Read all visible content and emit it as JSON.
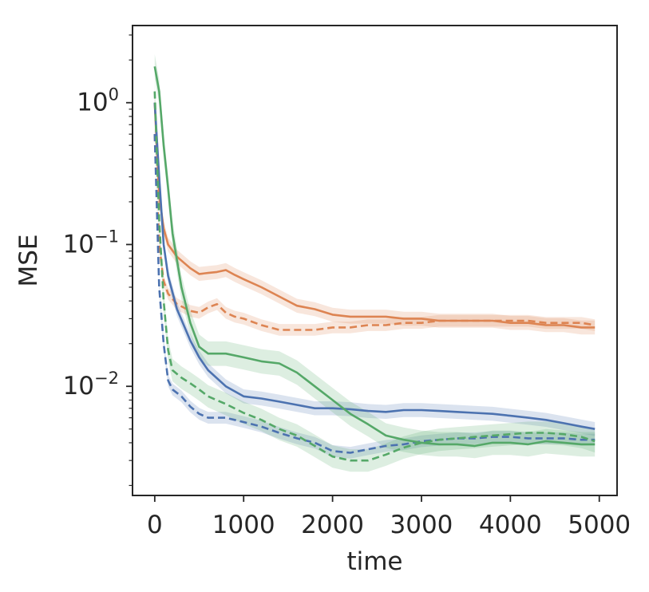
{
  "chart_data": {
    "type": "line",
    "title": "",
    "xlabel": "time",
    "ylabel": "MSE",
    "xlim": [
      -250,
      5200
    ],
    "ylim": [
      0.0017,
      3.5
    ],
    "y_scale": "log",
    "grid": false,
    "legend": "none",
    "x_ticks": [
      0,
      1000,
      2000,
      3000,
      4000,
      5000
    ],
    "x_tick_labels": [
      "0",
      "1000",
      "2000",
      "3000",
      "4000",
      "5000"
    ],
    "y_ticks": [
      {
        "value": 1,
        "base": "10",
        "exp": "0"
      },
      {
        "value": 0.1,
        "base": "10",
        "exp": "−1"
      },
      {
        "value": 0.01,
        "base": "10",
        "exp": "−2"
      }
    ],
    "series": [
      {
        "color": "#dd8452",
        "dash": "solid",
        "x": [
          0,
          50,
          100,
          150,
          250,
          400,
          500,
          600,
          700,
          800,
          900,
          1000,
          1200,
          1400,
          1600,
          1800,
          2000,
          2200,
          2400,
          2600,
          2800,
          3000,
          3200,
          3400,
          3600,
          3800,
          4000,
          4200,
          4400,
          4600,
          4800,
          4950
        ],
        "y": [
          1.0,
          0.22,
          0.13,
          0.1,
          0.082,
          0.068,
          0.062,
          0.063,
          0.064,
          0.066,
          0.061,
          0.057,
          0.05,
          0.043,
          0.037,
          0.035,
          0.032,
          0.031,
          0.031,
          0.031,
          0.03,
          0.03,
          0.029,
          0.029,
          0.029,
          0.029,
          0.028,
          0.028,
          0.027,
          0.027,
          0.026,
          0.026
        ],
        "band_ratio": 1.12
      },
      {
        "color": "#dd8452",
        "dash": "dashed",
        "x": [
          0,
          50,
          100,
          150,
          250,
          400,
          500,
          600,
          700,
          800,
          900,
          1000,
          1200,
          1400,
          1600,
          1800,
          2000,
          2200,
          2400,
          2600,
          2800,
          3000,
          3200,
          3400,
          3600,
          3800,
          4000,
          4200,
          4400,
          4600,
          4800,
          4950
        ],
        "y": [
          0.6,
          0.1,
          0.055,
          0.045,
          0.038,
          0.034,
          0.033,
          0.036,
          0.038,
          0.033,
          0.031,
          0.03,
          0.027,
          0.025,
          0.025,
          0.025,
          0.026,
          0.026,
          0.027,
          0.027,
          0.028,
          0.028,
          0.029,
          0.029,
          0.029,
          0.029,
          0.029,
          0.029,
          0.028,
          0.028,
          0.028,
          0.027
        ],
        "band_ratio": 1.1
      },
      {
        "color": "#4c72b0",
        "dash": "solid",
        "x": [
          0,
          50,
          100,
          150,
          250,
          400,
          500,
          600,
          800,
          1000,
          1200,
          1400,
          1600,
          1800,
          2000,
          2200,
          2400,
          2600,
          2800,
          3000,
          3200,
          3400,
          3600,
          3800,
          4000,
          4200,
          4400,
          4600,
          4800,
          4950
        ],
        "y": [
          1.0,
          0.3,
          0.1,
          0.06,
          0.035,
          0.021,
          0.016,
          0.013,
          0.01,
          0.0085,
          0.0082,
          0.0078,
          0.0074,
          0.007,
          0.007,
          0.0069,
          0.0067,
          0.0066,
          0.0068,
          0.0068,
          0.0067,
          0.0066,
          0.0065,
          0.0064,
          0.0062,
          0.006,
          0.0058,
          0.0055,
          0.0052,
          0.005
        ],
        "band_ratio": 1.12
      },
      {
        "color": "#4c72b0",
        "dash": "dashed",
        "x": [
          0,
          50,
          100,
          150,
          200,
          300,
          400,
          500,
          600,
          800,
          1000,
          1200,
          1400,
          1600,
          1800,
          2000,
          2200,
          2400,
          2600,
          2800,
          3000,
          3200,
          3400,
          3600,
          3800,
          4000,
          4200,
          4400,
          4600,
          4800,
          4950
        ],
        "y": [
          0.6,
          0.05,
          0.02,
          0.011,
          0.0095,
          0.0085,
          0.0072,
          0.0064,
          0.006,
          0.006,
          0.0056,
          0.0052,
          0.0047,
          0.0043,
          0.004,
          0.0035,
          0.0034,
          0.0036,
          0.0038,
          0.0039,
          0.0041,
          0.0042,
          0.0043,
          0.0043,
          0.0044,
          0.0044,
          0.0043,
          0.0043,
          0.0043,
          0.0042,
          0.0042
        ],
        "band_ratio": 1.1
      },
      {
        "color": "#55a868",
        "dash": "solid",
        "x": [
          0,
          50,
          100,
          150,
          200,
          300,
          400,
          500,
          600,
          800,
          1000,
          1200,
          1400,
          1600,
          1800,
          2000,
          2200,
          2400,
          2600,
          2800,
          3000,
          3200,
          3400,
          3600,
          3800,
          4000,
          4200,
          4400,
          4600,
          4800,
          4950
        ],
        "y": [
          1.8,
          1.2,
          0.5,
          0.25,
          0.12,
          0.05,
          0.028,
          0.019,
          0.017,
          0.017,
          0.016,
          0.015,
          0.0145,
          0.0125,
          0.01,
          0.008,
          0.0064,
          0.0054,
          0.0045,
          0.0042,
          0.004,
          0.0039,
          0.0039,
          0.0038,
          0.004,
          0.004,
          0.0039,
          0.0041,
          0.004,
          0.0039,
          0.0039
        ],
        "band_ratio": 1.22
      },
      {
        "color": "#55a868",
        "dash": "dashed",
        "x": [
          0,
          50,
          100,
          150,
          200,
          300,
          400,
          500,
          600,
          800,
          1000,
          1200,
          1400,
          1600,
          1800,
          2000,
          2200,
          2400,
          2600,
          2800,
          3000,
          3200,
          3400,
          3600,
          3800,
          4000,
          4200,
          4400,
          4600,
          4800,
          4950
        ],
        "y": [
          1.2,
          0.15,
          0.04,
          0.018,
          0.013,
          0.0115,
          0.0105,
          0.0095,
          0.0085,
          0.0075,
          0.0065,
          0.0058,
          0.005,
          0.0045,
          0.0038,
          0.0032,
          0.003,
          0.003,
          0.0033,
          0.0037,
          0.004,
          0.0042,
          0.0043,
          0.0044,
          0.0045,
          0.0046,
          0.0047,
          0.0047,
          0.0046,
          0.0044,
          0.0041
        ],
        "band_ratio": 1.2
      }
    ]
  }
}
